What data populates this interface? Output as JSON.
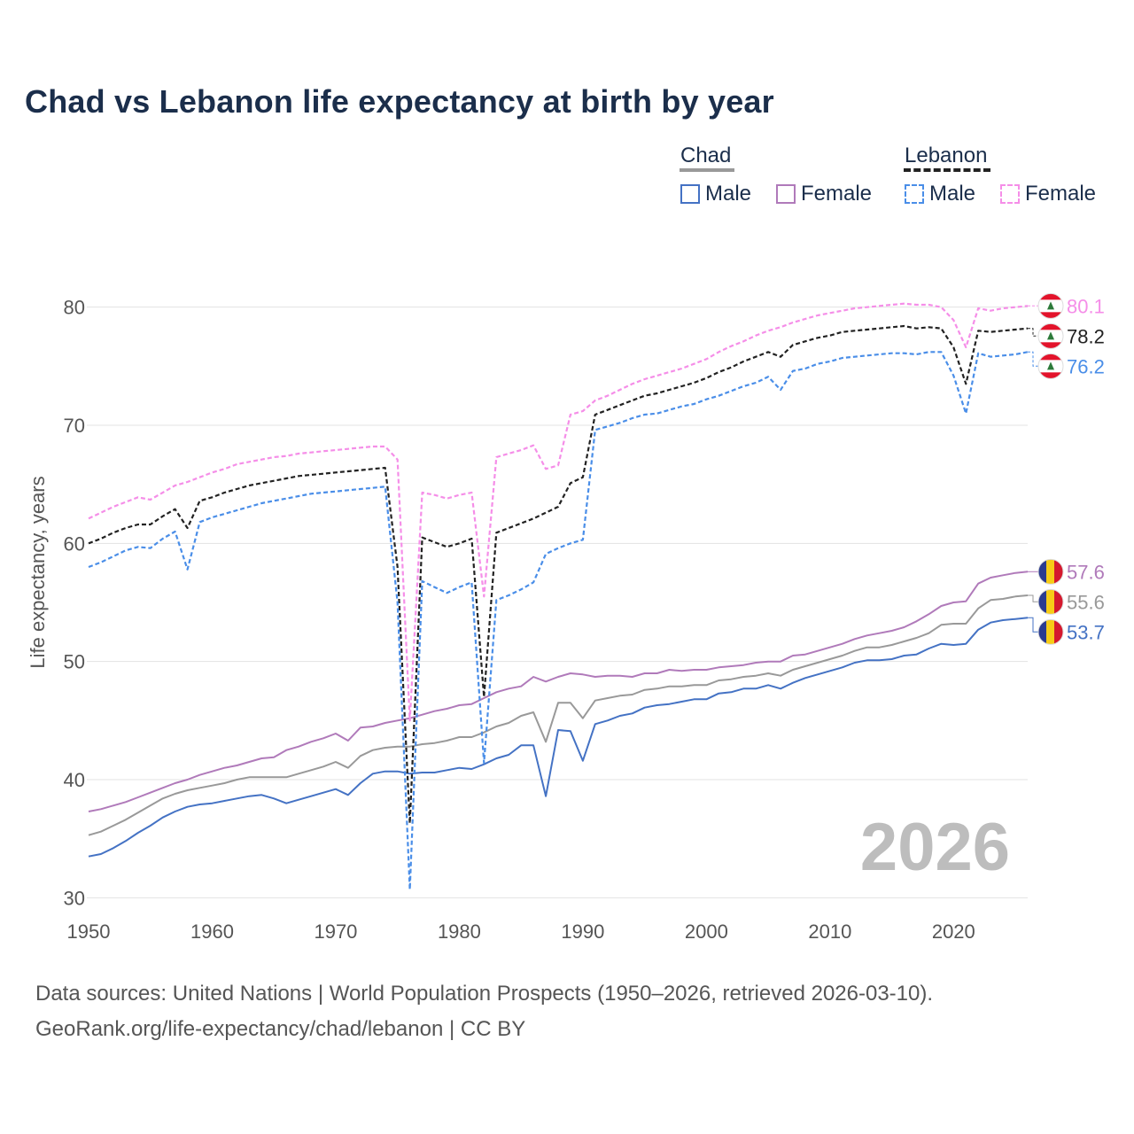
{
  "title": "Chad vs Lebanon life expectancy at birth by year",
  "legend": {
    "groups": [
      {
        "name": "Chad",
        "style": "solid",
        "color": "#999999",
        "items": [
          {
            "label": "Male",
            "color": "#4472c4",
            "dashed": false
          },
          {
            "label": "Female",
            "color": "#b07aba",
            "dashed": false
          }
        ]
      },
      {
        "name": "Lebanon",
        "style": "dashed",
        "color": "#222222",
        "items": [
          {
            "label": "Male",
            "color": "#4a8ee8",
            "dashed": true
          },
          {
            "label": "Female",
            "color": "#f58ee8",
            "dashed": true
          }
        ]
      }
    ]
  },
  "year_watermark": "2026",
  "footer": {
    "line1": "Data sources: United Nations | World Population Prospects (1950–2026, retrieved 2026-03-10).",
    "line2": "GeoRank.org/life-expectancy/chad/lebanon | CC BY"
  },
  "flag_icons": {
    "lebanon": "lebanon-flag-icon",
    "chad": "chad-flag-icon"
  },
  "chart_data": {
    "type": "line",
    "title": "Chad vs Lebanon life expectancy at birth by year",
    "xlabel": "",
    "ylabel": "Life expectancy, years",
    "xlim": [
      1950,
      2026
    ],
    "ylim": [
      28,
      85
    ],
    "xticks": [
      1950,
      1960,
      1970,
      1980,
      1990,
      2000,
      2010,
      2020
    ],
    "yticks": [
      30,
      40,
      50,
      60,
      70,
      80
    ],
    "grid": true,
    "x": [
      1950,
      1951,
      1952,
      1953,
      1954,
      1955,
      1956,
      1957,
      1958,
      1959,
      1960,
      1961,
      1962,
      1963,
      1964,
      1965,
      1966,
      1967,
      1968,
      1969,
      1970,
      1971,
      1972,
      1973,
      1974,
      1975,
      1976,
      1977,
      1978,
      1979,
      1980,
      1981,
      1982,
      1983,
      1984,
      1985,
      1986,
      1987,
      1988,
      1989,
      1990,
      1991,
      1992,
      1993,
      1994,
      1995,
      1996,
      1997,
      1998,
      1999,
      2000,
      2001,
      2002,
      2003,
      2004,
      2005,
      2006,
      2007,
      2008,
      2009,
      2010,
      2011,
      2012,
      2013,
      2014,
      2015,
      2016,
      2017,
      2018,
      2019,
      2020,
      2021,
      2022,
      2023,
      2024,
      2025,
      2026
    ],
    "series": [
      {
        "name": "Chad Male",
        "country": "Chad",
        "sex": "Male",
        "color": "#4472c4",
        "dashed": false,
        "end_label": "53.7",
        "values": [
          33.5,
          33.7,
          34.2,
          34.8,
          35.5,
          36.1,
          36.8,
          37.3,
          37.7,
          37.9,
          38.0,
          38.2,
          38.4,
          38.6,
          38.7,
          38.4,
          38.0,
          38.3,
          38.6,
          38.9,
          39.2,
          38.7,
          39.7,
          40.5,
          40.7,
          40.7,
          40.5,
          40.6,
          40.6,
          40.8,
          41.0,
          40.9,
          41.3,
          41.8,
          42.1,
          42.9,
          42.9,
          38.6,
          44.2,
          44.1,
          41.6,
          44.7,
          45.0,
          45.4,
          45.6,
          46.1,
          46.3,
          46.4,
          46.6,
          46.8,
          46.8,
          47.3,
          47.4,
          47.7,
          47.7,
          48.0,
          47.7,
          48.2,
          48.6,
          48.9,
          49.2,
          49.5,
          49.9,
          50.1,
          50.1,
          50.2,
          50.5,
          50.6,
          51.1,
          51.5,
          51.4,
          51.5,
          52.7,
          53.3,
          53.5,
          53.6,
          53.7
        ]
      },
      {
        "name": "Chad Both",
        "country": "Chad",
        "sex": "Both",
        "color": "#999999",
        "dashed": false,
        "end_label": "55.6",
        "values": [
          35.3,
          35.6,
          36.1,
          36.6,
          37.2,
          37.8,
          38.4,
          38.8,
          39.1,
          39.3,
          39.5,
          39.7,
          40.0,
          40.2,
          40.2,
          40.2,
          40.2,
          40.5,
          40.8,
          41.1,
          41.5,
          41.0,
          42.0,
          42.5,
          42.7,
          42.8,
          42.8,
          43.0,
          43.1,
          43.3,
          43.6,
          43.6,
          44.0,
          44.5,
          44.8,
          45.4,
          45.7,
          43.2,
          46.5,
          46.5,
          45.2,
          46.7,
          46.9,
          47.1,
          47.2,
          47.6,
          47.7,
          47.9,
          47.9,
          48.0,
          48.0,
          48.4,
          48.5,
          48.7,
          48.8,
          49.0,
          48.8,
          49.3,
          49.6,
          49.9,
          50.2,
          50.5,
          50.9,
          51.2,
          51.2,
          51.4,
          51.7,
          52.0,
          52.4,
          53.1,
          53.2,
          53.2,
          54.5,
          55.2,
          55.3,
          55.5,
          55.6
        ]
      },
      {
        "name": "Chad Female",
        "country": "Chad",
        "sex": "Female",
        "color": "#b07aba",
        "dashed": false,
        "end_label": "57.6",
        "values": [
          37.3,
          37.5,
          37.8,
          38.1,
          38.5,
          38.9,
          39.3,
          39.7,
          40.0,
          40.4,
          40.7,
          41.0,
          41.2,
          41.5,
          41.8,
          41.9,
          42.5,
          42.8,
          43.2,
          43.5,
          43.9,
          43.3,
          44.4,
          44.5,
          44.8,
          45.0,
          45.2,
          45.5,
          45.8,
          46.0,
          46.3,
          46.4,
          46.9,
          47.4,
          47.7,
          47.9,
          48.7,
          48.3,
          48.7,
          49.0,
          48.9,
          48.7,
          48.8,
          48.8,
          48.7,
          49.0,
          49.0,
          49.3,
          49.2,
          49.3,
          49.3,
          49.5,
          49.6,
          49.7,
          49.9,
          50.0,
          50.0,
          50.5,
          50.6,
          50.9,
          51.2,
          51.5,
          51.9,
          52.2,
          52.4,
          52.6,
          52.9,
          53.4,
          54.0,
          54.7,
          55.0,
          55.1,
          56.6,
          57.1,
          57.3,
          57.5,
          57.6
        ]
      },
      {
        "name": "Lebanon Female",
        "country": "Lebanon",
        "sex": "Female",
        "color": "#f58ee8",
        "dashed": true,
        "end_label": "80.1",
        "values": [
          62.1,
          62.6,
          63.1,
          63.5,
          63.9,
          63.7,
          64.3,
          64.9,
          65.2,
          65.6,
          66.0,
          66.3,
          66.7,
          66.9,
          67.1,
          67.3,
          67.4,
          67.6,
          67.7,
          67.8,
          67.9,
          68.0,
          68.1,
          68.2,
          68.2,
          67.1,
          45.0,
          64.3,
          64.1,
          63.8,
          64.1,
          64.3,
          55.5,
          67.3,
          67.6,
          67.9,
          68.3,
          66.3,
          66.6,
          70.9,
          71.2,
          72.1,
          72.5,
          73.0,
          73.5,
          73.9,
          74.2,
          74.5,
          74.8,
          75.2,
          75.6,
          76.2,
          76.7,
          77.1,
          77.6,
          78.0,
          78.3,
          78.7,
          79.0,
          79.3,
          79.5,
          79.7,
          79.9,
          80.0,
          80.1,
          80.2,
          80.3,
          80.2,
          80.2,
          80.0,
          78.9,
          76.6,
          79.9,
          79.7,
          79.9,
          80.0,
          80.1
        ]
      },
      {
        "name": "Lebanon Both",
        "country": "Lebanon",
        "sex": "Both",
        "color": "#222222",
        "dashed": true,
        "end_label": "78.2",
        "values": [
          60.0,
          60.4,
          60.9,
          61.3,
          61.6,
          61.6,
          62.3,
          62.9,
          61.3,
          63.6,
          63.9,
          64.3,
          64.6,
          64.9,
          65.1,
          65.3,
          65.5,
          65.7,
          65.8,
          65.9,
          66.0,
          66.1,
          66.2,
          66.3,
          66.4,
          58.0,
          36.3,
          60.5,
          60.1,
          59.7,
          60.0,
          60.4,
          47.0,
          60.9,
          61.3,
          61.7,
          62.1,
          62.6,
          63.1,
          65.1,
          65.6,
          70.9,
          71.3,
          71.7,
          72.1,
          72.5,
          72.7,
          73.0,
          73.3,
          73.6,
          74.0,
          74.5,
          74.9,
          75.4,
          75.8,
          76.2,
          75.8,
          76.8,
          77.1,
          77.4,
          77.6,
          77.9,
          78.0,
          78.1,
          78.2,
          78.3,
          78.4,
          78.2,
          78.3,
          78.2,
          76.6,
          73.5,
          78.0,
          77.9,
          78.0,
          78.1,
          78.2
        ]
      },
      {
        "name": "Lebanon Male",
        "country": "Lebanon",
        "sex": "Male",
        "color": "#4a8ee8",
        "dashed": true,
        "end_label": "76.2",
        "values": [
          58.0,
          58.4,
          58.9,
          59.4,
          59.7,
          59.6,
          60.4,
          61.0,
          57.8,
          61.8,
          62.2,
          62.5,
          62.8,
          63.1,
          63.4,
          63.6,
          63.8,
          64.0,
          64.2,
          64.3,
          64.4,
          64.5,
          64.6,
          64.7,
          64.8,
          55.0,
          30.7,
          56.8,
          56.3,
          55.8,
          56.3,
          56.7,
          41.4,
          55.2,
          55.6,
          56.1,
          56.7,
          59.1,
          59.6,
          60.0,
          60.3,
          69.6,
          69.9,
          70.2,
          70.6,
          70.9,
          71.0,
          71.3,
          71.6,
          71.8,
          72.2,
          72.5,
          72.9,
          73.3,
          73.6,
          74.1,
          73.0,
          74.6,
          74.8,
          75.2,
          75.4,
          75.7,
          75.8,
          75.9,
          76.0,
          76.1,
          76.1,
          76.0,
          76.2,
          76.2,
          74.2,
          71.0,
          76.1,
          75.8,
          75.9,
          76.0,
          76.2
        ]
      }
    ]
  }
}
